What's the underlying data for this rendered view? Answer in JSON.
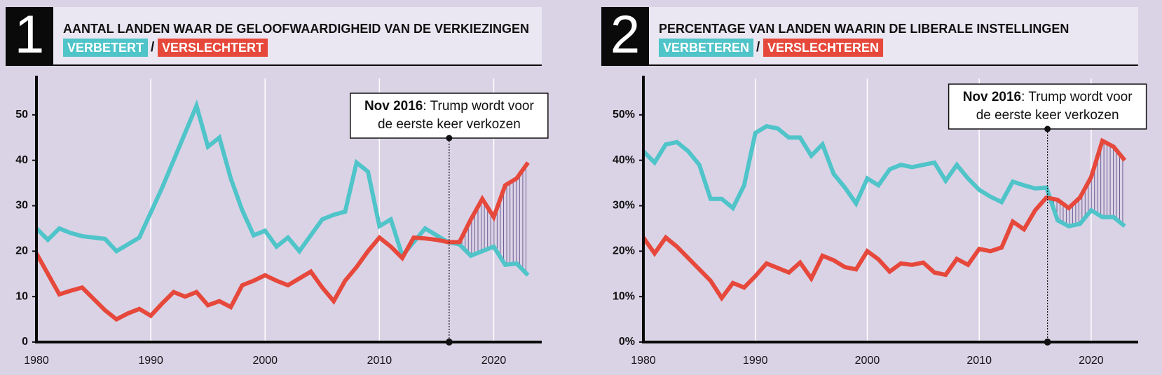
{
  "chart_data": [
    {
      "type": "line",
      "number": "1",
      "title": "AANTAL LANDEN WAAR DE GELOOFWAARDIGHEID VAN DE VERKIEZINGEN",
      "legend_separator": "/",
      "x": [
        1980,
        1981,
        1982,
        1983,
        1984,
        1985,
        1986,
        1987,
        1988,
        1989,
        1990,
        1991,
        1992,
        1993,
        1994,
        1995,
        1996,
        1997,
        1998,
        1999,
        2000,
        2001,
        2002,
        2003,
        2004,
        2005,
        2006,
        2007,
        2008,
        2009,
        2010,
        2011,
        2012,
        2013,
        2014,
        2015,
        2016,
        2017,
        2018,
        2019,
        2020,
        2021,
        2022,
        2023
      ],
      "series": [
        {
          "name": "VERBETERT",
          "color": "#4fc4c9",
          "values": [
            25,
            22.5,
            25,
            24,
            23.3,
            23,
            22.7,
            20,
            21.5,
            23,
            28.5,
            34,
            40,
            46,
            52,
            43,
            45,
            36,
            29,
            23.5,
            24.5,
            21,
            23,
            20,
            23.5,
            27,
            28,
            28.7,
            39.5,
            37.5,
            25.5,
            27,
            19,
            22,
            25,
            23.5,
            22,
            21.5,
            19,
            20,
            21,
            17,
            17.3,
            14.7
          ]
        },
        {
          "name": "VERSLECHTERT",
          "color": "#e6483b",
          "values": [
            19.5,
            15,
            10.5,
            11.3,
            12,
            9.5,
            7,
            5,
            6.3,
            7.3,
            5.8,
            8.5,
            11,
            10,
            11,
            8.1,
            9,
            7.7,
            12.5,
            13.5,
            14.7,
            13.5,
            12.5,
            14,
            15.5,
            12,
            9,
            13.5,
            16.5,
            20,
            23,
            21,
            18.5,
            23,
            22.8,
            22.5,
            22,
            22,
            27,
            31.5,
            27.5,
            34.5,
            36,
            39.5
          ]
        }
      ],
      "xlim": [
        1980,
        2024.2
      ],
      "ylim": [
        0,
        58
      ],
      "xticks": [
        1980,
        1990,
        2000,
        2010,
        2020
      ],
      "yticks": [
        0,
        10,
        20,
        30,
        40,
        50
      ],
      "grid": true,
      "annotation": {
        "x": 2016.1,
        "label": "Nov 2016",
        "lines": [
          ": Trump wordt voor",
          "de eerste keer verkozen"
        ]
      }
    },
    {
      "type": "line",
      "number": "2",
      "title": "PERCENTAGE VAN LANDEN WAARIN DE LIBERALE INSTELLINGEN",
      "legend_separator": "/",
      "x": [
        1980,
        1981,
        1982,
        1983,
        1984,
        1985,
        1986,
        1987,
        1988,
        1989,
        1990,
        1991,
        1992,
        1993,
        1994,
        1995,
        1996,
        1997,
        1998,
        1999,
        2000,
        2001,
        2002,
        2003,
        2004,
        2005,
        2006,
        2007,
        2008,
        2009,
        2010,
        2011,
        2012,
        2013,
        2014,
        2015,
        2016,
        2017,
        2018,
        2019,
        2020,
        2021,
        2022,
        2023
      ],
      "series": [
        {
          "name": "VERBETEREN",
          "color": "#4fc4c9",
          "values": [
            42,
            39.5,
            43.5,
            44,
            42,
            39,
            31.5,
            31.5,
            29.5,
            34.5,
            46,
            47.5,
            47,
            45,
            45,
            41,
            43.5,
            37,
            34,
            30.5,
            36,
            34.5,
            38,
            39,
            38.5,
            39,
            39.5,
            35.5,
            39,
            36,
            33.5,
            32,
            30.8,
            35.3,
            34.5,
            33.8,
            34,
            26.8,
            25.5,
            26,
            29,
            27.5,
            27.5,
            25.5
          ]
        },
        {
          "name": "VERSLECHTEREN",
          "color": "#e6483b",
          "values": [
            23,
            19.5,
            23,
            21,
            18.5,
            16,
            13.5,
            9.7,
            13,
            12,
            14.5,
            17.3,
            16.3,
            15.3,
            17.5,
            14,
            19,
            18,
            16.5,
            16,
            20,
            18.2,
            15.5,
            17.3,
            17,
            17.5,
            15.3,
            14.8,
            18.3,
            17,
            20.5,
            20,
            20.8,
            26.5,
            24.8,
            29,
            31.8,
            31.3,
            29.5,
            31.8,
            36.3,
            44.3,
            43,
            40
          ]
        }
      ],
      "xlim": [
        1980,
        2024.2
      ],
      "ylim": [
        0,
        58
      ],
      "xticks": [
        1980,
        1990,
        2000,
        2010,
        2020
      ],
      "yticks": [
        {
          "value": 0,
          "label": "0%"
        },
        {
          "value": 10,
          "label": "10%"
        },
        {
          "value": 20,
          "label": "20%"
        },
        {
          "value": 30,
          "label": "30%"
        },
        {
          "value": 40,
          "label": "40%"
        },
        {
          "value": 50,
          "label": "50%"
        }
      ],
      "grid": true,
      "annotation": {
        "x": 2016.1,
        "label": "Nov 2016",
        "lines": [
          ": Trump wordt voor",
          "de eerste keer verkozen"
        ]
      }
    }
  ]
}
